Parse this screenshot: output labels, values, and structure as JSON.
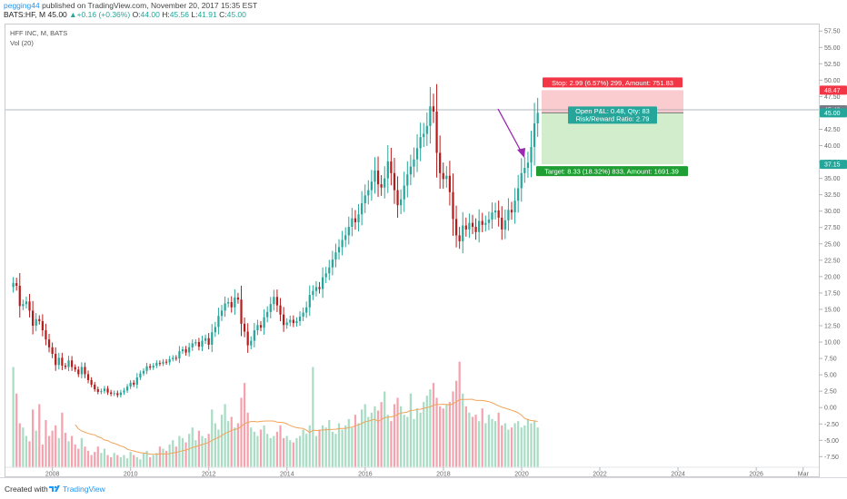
{
  "header": {
    "user": "pegging44",
    "published": "published on TradingView.com, November 20, 2017 15:35 EST",
    "symbol": "BATS:HF, M",
    "last": "45.00",
    "change_arrow": "▲",
    "change": "+0.16 (+0.36%)",
    "o_label": "O:",
    "o_value": "44.00",
    "h_label": "H:",
    "h_value": "45.56",
    "l_label": "L:",
    "l_value": "41.91",
    "c_label": "C:",
    "c_value": "45.00"
  },
  "legend": {
    "title": "HFF INC, M, BATS",
    "volume": "Vol (20)"
  },
  "footer": {
    "created": "Created with",
    "brand": "TradingView"
  },
  "position": {
    "stop_label": "Stop: 2.99 (6.57%) 299, Amount: 751.83",
    "pnl_label": "Open P&L: 0.48, Qty: 83",
    "rr_label": "Risk/Reward Ratio: 2.79",
    "target_label": "Target: 8.33 (18.32%) 833, Amount: 1691.39",
    "entry": 45.0,
    "stop": 48.47,
    "target": 37.15,
    "current": 45.48
  },
  "price_badges": [
    {
      "value": "48.47",
      "color": "#f23645"
    },
    {
      "value": "45.48",
      "color": "#787b86"
    },
    {
      "value": "45.00",
      "color": "#26a69a"
    },
    {
      "value": "37.15",
      "color": "#26a69a"
    }
  ],
  "colors": {
    "up": "#26a69a",
    "down": "#b71c1c",
    "vol_up": "#a8dcc4",
    "vol_down": "#f4a3ae",
    "ma": "#f0a35a",
    "stop_zone": "#f9c7cb",
    "target_zone": "#cdebc7",
    "arrow": "#9c27b0"
  },
  "chart_data": {
    "type": "candlestick",
    "timeframe": "monthly",
    "y_axis_ticks": [
      "57.50",
      "55.00",
      "52.50",
      "50.00",
      "47.50",
      "45.00",
      "42.50",
      "40.00",
      "37.50",
      "35.00",
      "32.50",
      "30.00",
      "27.50",
      "25.00",
      "22.50",
      "20.00",
      "17.50",
      "15.00",
      "12.50",
      "10.00",
      "7.50",
      "5.00",
      "2.50",
      "0.00",
      "-2.50",
      "-5.00",
      "-7.50"
    ],
    "ylim": [
      -10.5,
      58.5
    ],
    "x_axis_ticks": [
      "2008",
      "2010",
      "2012",
      "2014",
      "2016",
      "2018",
      "2020",
      "2022",
      "2024",
      "2026",
      "Mar"
    ],
    "xlim": [
      2006.8,
      2027.6
    ],
    "series": [
      {
        "name": "HFF INC, M, BATS",
        "kind": "price",
        "start": 2007.0,
        "step": 0.0833,
        "close": [
          19,
          18.6,
          15.5,
          15.8,
          16.2,
          14.8,
          12.5,
          13.5,
          13.2,
          11.8,
          10.4,
          9.2,
          8.2,
          6.5,
          7.6,
          6.4,
          6.2,
          7.2,
          6.2,
          5.8,
          5.1,
          6.2,
          5.1,
          4.2,
          3.5,
          2.8,
          2.4,
          2.5,
          2.9,
          2.3,
          2.1,
          2.2,
          1.9,
          2.3,
          2.6,
          3.2,
          3.8,
          3.5,
          4.6,
          5.2,
          5.6,
          6.3,
          6.1,
          6.4,
          6.8,
          6.7,
          7.0,
          6.9,
          7.4,
          7.6,
          7.5,
          8.6,
          8.9,
          8.4,
          9.2,
          9.8,
          10.0,
          9.3,
          10.2,
          10.6,
          9.6,
          11.5,
          12.3,
          14.0,
          14.8,
          15.9,
          16.1,
          15.3,
          16.8,
          16.5,
          12.8,
          11.6,
          9.5,
          10.2,
          11.8,
          12.6,
          12.2,
          13.8,
          14.6,
          15.8,
          16.9,
          15.6,
          14.2,
          12.6,
          13.0,
          13.4,
          12.9,
          13.2,
          13.9,
          14.5,
          15.3,
          17.2,
          17.8,
          18.4,
          18.1,
          19.9,
          20.5,
          21.4,
          22.6,
          23.7,
          24.5,
          25.6,
          26.3,
          27.6,
          28.9,
          28.3,
          29.5,
          31.2,
          32.4,
          33.2,
          34.5,
          36.2,
          34.1,
          33.6,
          35.0,
          37.6,
          35.8,
          33.2,
          30.9,
          31.8,
          33.9,
          35.6,
          36.8,
          37.9,
          39.6,
          41.3,
          41.8,
          43.0,
          46.0,
          45.2,
          38.9,
          35.8,
          34.9,
          35.4,
          32.9,
          28.8,
          26.3,
          25.4,
          27.8,
          27.2,
          28.2,
          27.6,
          26.8,
          28.5,
          27.9,
          28.2,
          28.7,
          29.8,
          30.1,
          29.0,
          27.2,
          28.6,
          30.2,
          29.8,
          31.6,
          33.5,
          35.8,
          36.6,
          37.4,
          39.8,
          43.4,
          45.0
        ]
      },
      {
        "name": "Vol (20)",
        "kind": "volume",
        "values": [
          0.95,
          0.7,
          0.42,
          0.38,
          0.3,
          0.25,
          0.55,
          0.35,
          0.6,
          0.22,
          0.45,
          0.3,
          0.35,
          0.4,
          0.28,
          0.52,
          0.33,
          0.25,
          0.3,
          0.22,
          0.18,
          0.28,
          0.2,
          0.16,
          0.12,
          0.15,
          0.2,
          0.14,
          0.18,
          0.12,
          0.1,
          0.14,
          0.12,
          0.1,
          0.12,
          0.09,
          0.15,
          0.12,
          0.1,
          0.08,
          0.14,
          0.16,
          0.1,
          0.12,
          0.14,
          0.2,
          0.18,
          0.16,
          0.22,
          0.26,
          0.2,
          0.3,
          0.28,
          0.24,
          0.32,
          0.38,
          0.26,
          0.35,
          0.3,
          0.28,
          0.32,
          0.55,
          0.42,
          0.36,
          0.5,
          0.6,
          0.44,
          0.48,
          0.38,
          0.42,
          0.66,
          0.8,
          0.52,
          0.38,
          0.34,
          0.3,
          0.36,
          0.4,
          0.32,
          0.28,
          0.3,
          0.34,
          0.4,
          0.28,
          0.3,
          0.26,
          0.24,
          0.28,
          0.3,
          0.36,
          0.32,
          0.4,
          0.95,
          0.3,
          0.36,
          0.4,
          0.38,
          0.45,
          0.34,
          0.32,
          0.42,
          0.36,
          0.4,
          0.46,
          0.38,
          0.5,
          0.42,
          0.55,
          0.6,
          0.48,
          0.52,
          0.58,
          0.54,
          0.62,
          0.72,
          0.5,
          0.44,
          0.6,
          0.66,
          0.58,
          0.5,
          0.48,
          0.7,
          0.46,
          0.56,
          0.52,
          0.62,
          0.68,
          0.74,
          0.8,
          0.66,
          0.58,
          0.56,
          0.6,
          0.62,
          0.72,
          0.82,
          1.0,
          0.7,
          0.58,
          0.52,
          0.48,
          0.5,
          0.44,
          0.56,
          0.42,
          0.5,
          0.46,
          0.44,
          0.52,
          0.4,
          0.42,
          0.36,
          0.38,
          0.42,
          0.44,
          0.38,
          0.4,
          0.46,
          0.42,
          0.44,
          0.38,
          0.4,
          0.42
        ]
      }
    ]
  }
}
